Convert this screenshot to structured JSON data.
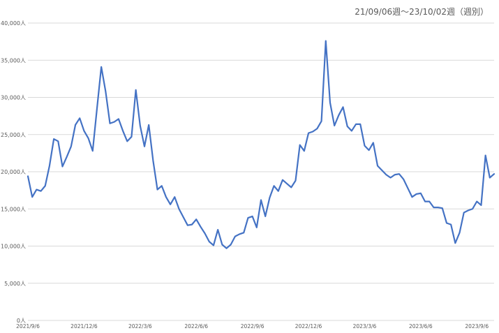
{
  "chart_data": {
    "type": "line",
    "subtitle": "21/09/06週～23/10/02週（週別）",
    "ylim": [
      0,
      40000
    ],
    "y_ticks": [
      {
        "value": 0,
        "label": "0人"
      },
      {
        "value": 5000,
        "label": "5,000人"
      },
      {
        "value": 10000,
        "label": "10,000人"
      },
      {
        "value": 15000,
        "label": "15,000人"
      },
      {
        "value": 20000,
        "label": "20,000人"
      },
      {
        "value": 25000,
        "label": "25,000人"
      },
      {
        "value": 30000,
        "label": "30,000人"
      },
      {
        "value": 35000,
        "label": "35,000人"
      },
      {
        "value": 40000,
        "label": "40,000人"
      }
    ],
    "x_ticks": [
      {
        "index": 0,
        "label": "2021/9/6"
      },
      {
        "index": 13,
        "label": "2021/12/6"
      },
      {
        "index": 26,
        "label": "2022/3/6"
      },
      {
        "index": 39,
        "label": "2022/6/6"
      },
      {
        "index": 52,
        "label": "2022/9/6"
      },
      {
        "index": 65,
        "label": "2022/12/6"
      },
      {
        "index": 78,
        "label": "2023/3/6"
      },
      {
        "index": 91,
        "label": "2023/6/6"
      },
      {
        "index": 104,
        "label": "2023/9/6"
      }
    ],
    "grid": true,
    "line_color": "#4472C4",
    "series": [
      {
        "values": [
          19400,
          16600,
          17600,
          17400,
          18100,
          20800,
          24400,
          24100,
          20700,
          22000,
          23400,
          26300,
          27200,
          25500,
          24500,
          22800,
          28500,
          34100,
          30800,
          26500,
          26700,
          27100,
          25500,
          24100,
          24700,
          31000,
          26200,
          23400,
          26300,
          21500,
          17600,
          18100,
          16600,
          15600,
          16600,
          15000,
          13900,
          12800,
          12900,
          13600,
          12600,
          11700,
          10600,
          10100,
          12200,
          10200,
          9700,
          10200,
          11300,
          11600,
          11800,
          13800,
          14000,
          12500,
          16200,
          14000,
          16500,
          18100,
          17400,
          18900,
          18400,
          17900,
          18800,
          23600,
          22800,
          25200,
          25400,
          25800,
          26800,
          37600,
          29300,
          26200,
          27600,
          28700,
          26100,
          25500,
          26400,
          26400,
          23500,
          22900,
          23900,
          20800,
          20200,
          19600,
          19200,
          19600,
          19700,
          19000,
          17800,
          16600,
          17000,
          17100,
          16000,
          16000,
          15200,
          15200,
          15100,
          13100,
          12900,
          10400,
          11800,
          14500,
          14800,
          15000,
          16000,
          15500,
          22200,
          19200,
          19700
        ]
      }
    ]
  }
}
